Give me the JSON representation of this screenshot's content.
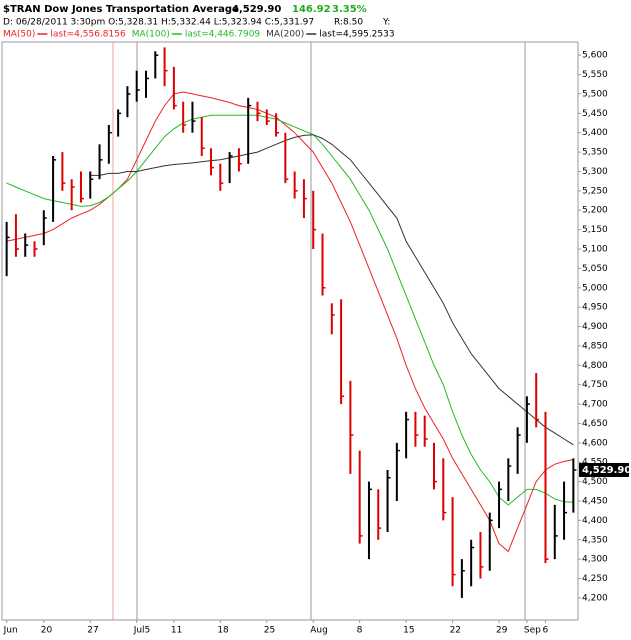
{
  "chart_data": {
    "type": "ohlc",
    "title": "$TRAN Dow Jones Transportation Average",
    "last_price_label": "4,529.90",
    "change": "146.92",
    "change_pct": "3.35%",
    "info": "D: 06/28/2011   3:30pm O:5,328.31 H:5,332.44 L:5,323.94 C:5,331.97",
    "range_info": "R:8.50",
    "yield_info": "Y:",
    "categories": [
      "Jun",
      null,
      null,
      null,
      "20",
      null,
      null,
      null,
      null,
      "27",
      null,
      null,
      null,
      null,
      "Jul5",
      null,
      null,
      null,
      "11",
      null,
      null,
      null,
      null,
      "18",
      null,
      null,
      null,
      null,
      "25",
      null,
      null,
      null,
      null,
      "Aug",
      null,
      null,
      null,
      null,
      "8",
      null,
      null,
      null,
      null,
      "15",
      null,
      null,
      null,
      null,
      "22",
      null,
      null,
      null,
      null,
      "29",
      null,
      null,
      "Sep",
      null,
      "6",
      null,
      null,
      null
    ],
    "high": [
      5170,
      5190,
      5140,
      5120,
      5200,
      5340,
      5350,
      5280,
      5300,
      5300,
      5370,
      5420,
      5460,
      5520,
      5560,
      5560,
      5610,
      5620,
      5570,
      5480,
      5480,
      5440,
      5360,
      5320,
      5350,
      5360,
      5490,
      5480,
      5460,
      5450,
      5400,
      5300,
      5280,
      5250,
      5140,
      4960,
      4970,
      4760,
      4580,
      4500,
      4480,
      4530,
      4600,
      4680,
      4680,
      4670,
      4600,
      4560,
      4460,
      4300,
      4350,
      4370,
      4420,
      4500,
      4560,
      4640,
      4720,
      4780,
      4680,
      4440,
      4500,
      4560
    ],
    "low": [
      5030,
      5080,
      5080,
      5080,
      5110,
      5170,
      5250,
      5200,
      5220,
      5230,
      5280,
      5320,
      5390,
      5440,
      5480,
      5490,
      5540,
      5520,
      5460,
      5400,
      5400,
      5340,
      5290,
      5250,
      5270,
      5300,
      5320,
      5430,
      5420,
      5390,
      5270,
      5230,
      5180,
      5100,
      4980,
      4880,
      4700,
      4520,
      4340,
      4300,
      4350,
      4370,
      4450,
      4560,
      4590,
      4590,
      4480,
      4400,
      4230,
      4200,
      4230,
      4250,
      4270,
      4380,
      4450,
      4520,
      4600,
      4640,
      4290,
      4300,
      4350,
      4420
    ],
    "close": [
      5130,
      5100,
      5110,
      5100,
      5180,
      5330,
      5270,
      5260,
      5230,
      5280,
      5330,
      5400,
      5450,
      5500,
      5510,
      5540,
      5600,
      5560,
      5470,
      5420,
      5430,
      5360,
      5310,
      5270,
      5340,
      5320,
      5470,
      5450,
      5430,
      5400,
      5280,
      5250,
      5230,
      5150,
      5000,
      4930,
      4720,
      4620,
      4360,
      4480,
      4380,
      4510,
      4580,
      4660,
      4620,
      4610,
      4500,
      4420,
      4260,
      4270,
      4330,
      4280,
      4400,
      4480,
      4540,
      4620,
      4700,
      4660,
      4300,
      4360,
      4420,
      4530
    ],
    "up_color": "#000000",
    "down_color": "#dd0000",
    "series": [
      {
        "name": "MA(50)",
        "last_label": "last=4,556.8156",
        "color": "#ee2222",
        "values": [
          5120,
          5125,
          5130,
          5135,
          5140,
          5150,
          5165,
          5180,
          5190,
          5200,
          5215,
          5235,
          5255,
          5280,
          5330,
          5380,
          5430,
          5470,
          5500,
          5505,
          5500,
          5495,
          5490,
          5484,
          5478,
          5470,
          5465,
          5460,
          5450,
          5440,
          5420,
          5400,
          5375,
          5350,
          5310,
          5270,
          5220,
          5170,
          5110,
          5050,
          4990,
          4930,
          4870,
          4800,
          4740,
          4690,
          4650,
          4610,
          4560,
          4520,
          4480,
          4440,
          4400,
          4340,
          4320,
          4380,
          4440,
          4500,
          4530,
          4545,
          4552,
          4557
        ]
      },
      {
        "name": "MA(100)",
        "last_label": "last=4,446.7909",
        "color": "#22bb22",
        "values": [
          5270,
          5260,
          5250,
          5240,
          5230,
          5225,
          5220,
          5215,
          5210,
          5212,
          5220,
          5235,
          5255,
          5275,
          5300,
          5330,
          5360,
          5390,
          5410,
          5425,
          5435,
          5440,
          5445,
          5445,
          5445,
          5445,
          5445,
          5445,
          5440,
          5435,
          5425,
          5415,
          5405,
          5395,
          5370,
          5340,
          5310,
          5280,
          5240,
          5200,
          5150,
          5100,
          5040,
          4980,
          4920,
          4860,
          4800,
          4750,
          4680,
          4620,
          4570,
          4530,
          4500,
          4460,
          4440,
          4460,
          4480,
          4480,
          4470,
          4455,
          4448,
          4447
        ]
      },
      {
        "name": "MA(200)",
        "last_label": "last=4,595.2533",
        "color": "#333333",
        "values": [
          null,
          null,
          null,
          null,
          null,
          null,
          null,
          null,
          null,
          5290,
          5290,
          5295,
          5295,
          5300,
          5300,
          5305,
          5310,
          5315,
          5318,
          5320,
          5322,
          5325,
          5328,
          5330,
          5335,
          5340,
          5345,
          5350,
          5360,
          5370,
          5380,
          5388,
          5393,
          5395,
          5385,
          5370,
          5350,
          5330,
          5300,
          5270,
          5240,
          5210,
          5180,
          5120,
          5080,
          5040,
          5000,
          4960,
          4910,
          4870,
          4830,
          4800,
          4770,
          4740,
          4720,
          4700,
          4680,
          4660,
          4640,
          4625,
          4610,
          4595
        ]
      }
    ],
    "ylim": [
      4143,
      5634
    ],
    "yticks": [
      {
        "value": 4200,
        "label": "4,200"
      },
      {
        "value": 4250,
        "label": "4,250"
      },
      {
        "value": 4300,
        "label": "4,300"
      },
      {
        "value": 4350,
        "label": "4,350"
      },
      {
        "value": 4400,
        "label": "4,400"
      },
      {
        "value": 4450,
        "label": "4,450"
      },
      {
        "value": 4500,
        "label": "4,500"
      },
      {
        "value": 4550,
        "label": "4,550"
      },
      {
        "value": 4600,
        "label": "4,600"
      },
      {
        "value": 4650,
        "label": "4,650"
      },
      {
        "value": 4700,
        "label": "4,700"
      },
      {
        "value": 4750,
        "label": "4,750"
      },
      {
        "value": 4800,
        "label": "4,800"
      },
      {
        "value": 4850,
        "label": "4,850"
      },
      {
        "value": 4900,
        "label": "4,900"
      },
      {
        "value": 4950,
        "label": "4,950"
      },
      {
        "value": 5000,
        "label": "5,000"
      },
      {
        "value": 5050,
        "label": "5,050"
      },
      {
        "value": 5100,
        "label": "5,100"
      },
      {
        "value": 5150,
        "label": "5,150"
      },
      {
        "value": 5200,
        "label": "5,200"
      },
      {
        "value": 5250,
        "label": "5,250"
      },
      {
        "value": 5300,
        "label": "5,300"
      },
      {
        "value": 5350,
        "label": "5,350"
      },
      {
        "value": 5400,
        "label": "5,400"
      },
      {
        "value": 5450,
        "label": "5,450"
      },
      {
        "value": 5500,
        "label": "5,500"
      },
      {
        "value": 5550,
        "label": "5,550"
      },
      {
        "value": 5600,
        "label": "5,600"
      }
    ],
    "grid": false
  }
}
